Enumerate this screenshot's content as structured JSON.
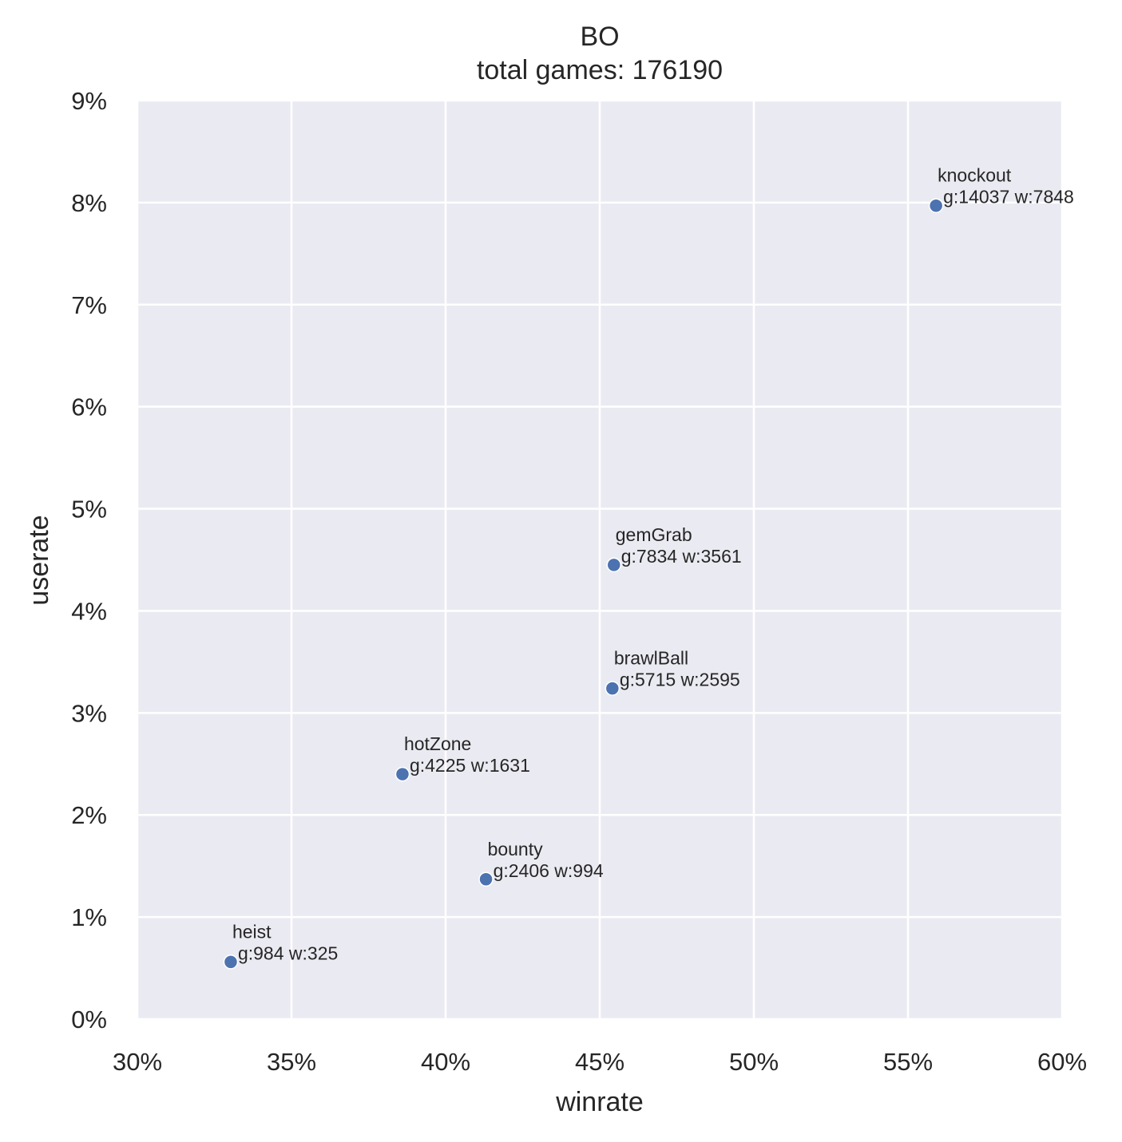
{
  "chart_data": {
    "type": "scatter",
    "title": "BO",
    "subtitle": "total games: 176190",
    "xlabel": "winrate",
    "ylabel": "userate",
    "xlim": [
      0.3,
      0.6
    ],
    "ylim": [
      0.0,
      0.09
    ],
    "xticks": [
      0.3,
      0.35,
      0.4,
      0.45,
      0.5,
      0.55,
      0.6
    ],
    "xtick_labels": [
      "30%",
      "35%",
      "40%",
      "45%",
      "50%",
      "55%",
      "60%"
    ],
    "yticks": [
      0.0,
      0.01,
      0.02,
      0.03,
      0.04,
      0.05,
      0.06,
      0.07,
      0.08,
      0.09
    ],
    "ytick_labels": [
      "0%",
      "1%",
      "2%",
      "3%",
      "4%",
      "5%",
      "6%",
      "7%",
      "8%",
      "9%"
    ],
    "grid": true,
    "colors": {
      "background": "#eaeaf2",
      "grid": "#ffffff",
      "point": "#4c72b0",
      "text": "#262626"
    },
    "points": [
      {
        "name": "knockout",
        "detail": "g:14037 w:7848",
        "x": 0.5591,
        "y": 0.0797
      },
      {
        "name": "gemGrab",
        "detail": "g:7834 w:3561",
        "x": 0.4546,
        "y": 0.0445
      },
      {
        "name": "hotZone",
        "detail": "g:4225 w:1631",
        "x": 0.386,
        "y": 0.024
      },
      {
        "name": "bounty",
        "detail": "g:2406 w:994",
        "x": 0.4131,
        "y": 0.0137
      },
      {
        "name": "heist",
        "detail": "g:984 w:325",
        "x": 0.3303,
        "y": 0.0056
      },
      {
        "name": "brawlBall",
        "detail": "g:5715 w:2595",
        "x": 0.4541,
        "y": 0.0324
      }
    ]
  }
}
